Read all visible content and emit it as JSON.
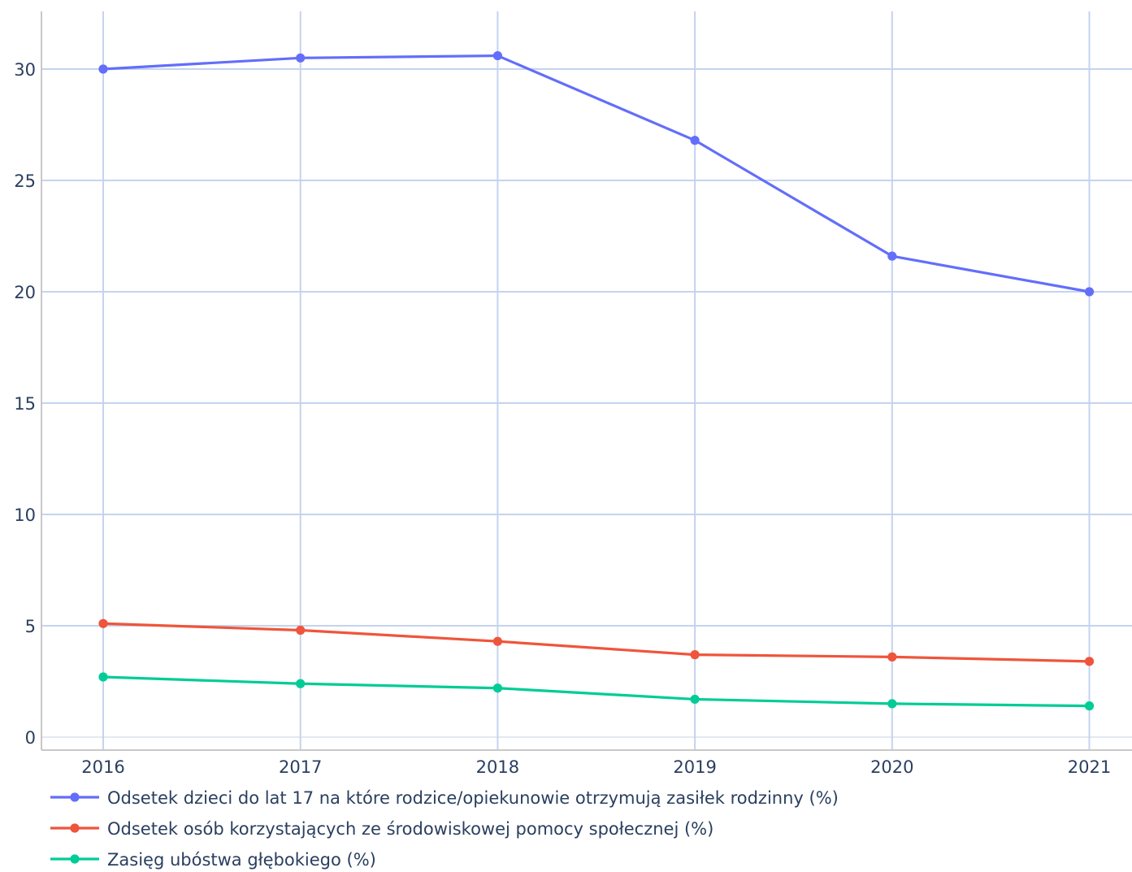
{
  "chart_data": {
    "type": "line",
    "x": [
      "2016",
      "2017",
      "2018",
      "2019",
      "2020",
      "2021"
    ],
    "ylim": [
      -0.6,
      32.5
    ],
    "yticks": [
      0,
      5,
      10,
      15,
      20,
      25,
      30
    ],
    "grid": true,
    "legend_position": "bottom-left",
    "series": [
      {
        "name": "Odsetek dzieci do lat 17 na które rodzice/opiekunowie otrzymują zasiłek rodzinny (%)",
        "color": "#636efa",
        "values": [
          30.0,
          30.5,
          30.6,
          26.8,
          21.6,
          20.0
        ]
      },
      {
        "name": "Odsetek osób korzystających ze środowiskowej pomocy społecznej (%)",
        "color": "#ef553b",
        "values": [
          5.1,
          4.8,
          4.3,
          3.7,
          3.6,
          3.4
        ]
      },
      {
        "name": "Zasięg ubóstwa głębokiego (%)",
        "color": "#00cc96",
        "values": [
          2.7,
          2.4,
          2.2,
          1.7,
          1.5,
          1.4
        ]
      }
    ]
  }
}
